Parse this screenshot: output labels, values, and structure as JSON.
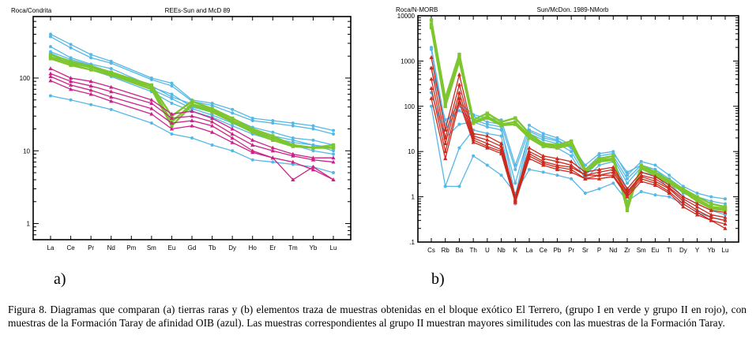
{
  "chart_data": [
    {
      "type": "line",
      "id": "a",
      "ylabel": "Roca/Condrita",
      "title": "REEs-Sun and McD 89",
      "yscale": "log",
      "ylim": [
        0.6,
        700
      ],
      "ytick_labels": [
        {
          "v": 100,
          "t": "100"
        },
        {
          "v": 10,
          "t": "10"
        },
        {
          "v": 1,
          "t": "1"
        }
      ],
      "categories": [
        "La",
        "Ce",
        "Pr",
        "Nd",
        "Pm",
        "Sm",
        "Eu",
        "Gd",
        "Tb",
        "Dy",
        "Ho",
        "Er",
        "Tm",
        "Yb",
        "Lu"
      ],
      "series": [
        {
          "name": "Taray OIB",
          "group": "blue",
          "values": [
            400,
            290,
            210,
            170,
            null,
            100,
            85,
            50,
            45,
            37,
            28,
            26,
            24,
            22,
            19
          ]
        },
        {
          "name": "Taray OIB",
          "group": "blue",
          "values": [
            370,
            260,
            190,
            160,
            null,
            95,
            78,
            48,
            42,
            33,
            26,
            24,
            22,
            20,
            17
          ]
        },
        {
          "name": "Taray OIB",
          "group": "blue",
          "values": [
            270,
            190,
            155,
            135,
            null,
            78,
            55,
            44,
            38,
            28,
            21,
            18,
            15,
            14,
            12
          ]
        },
        {
          "name": "Taray OIB",
          "group": "blue",
          "values": [
            230,
            180,
            150,
            120,
            null,
            75,
            60,
            40,
            34,
            26,
            20,
            16,
            14,
            12,
            11
          ]
        },
        {
          "name": "Taray OIB",
          "group": "blue",
          "values": [
            220,
            165,
            140,
            115,
            null,
            70,
            52,
            38,
            31,
            24,
            18,
            15,
            13,
            12,
            10
          ]
        },
        {
          "name": "Taray OIB",
          "group": "blue",
          "values": [
            210,
            155,
            130,
            105,
            null,
            65,
            45,
            35,
            29,
            22,
            17,
            14,
            12,
            10,
            9
          ]
        },
        {
          "name": "Taray OIB",
          "group": "blue",
          "values": [
            57,
            50,
            43,
            37,
            null,
            24,
            17,
            15,
            12,
            10,
            7.5,
            7,
            6.5,
            6,
            5
          ]
        },
        {
          "name": "Grupo I",
          "group": "green",
          "values": [
            210,
            170,
            145,
            120,
            null,
            80,
            30,
            48,
            38,
            28,
            20,
            16,
            12,
            11,
            11
          ]
        },
        {
          "name": "Grupo I",
          "group": "green",
          "values": [
            195,
            160,
            140,
            115,
            null,
            75,
            25,
            44,
            36,
            26,
            19,
            15,
            12,
            11,
            12
          ]
        },
        {
          "name": "Grupo I",
          "group": "green",
          "values": [
            185,
            150,
            130,
            110,
            null,
            70,
            22,
            42,
            34,
            25,
            18,
            14,
            11.5,
            11,
            11
          ]
        },
        {
          "name": "Grupo II",
          "group": "pink",
          "values": [
            135,
            100,
            90,
            75,
            null,
            50,
            32,
            35,
            28,
            20,
            14,
            11,
            9,
            8,
            8
          ]
        },
        {
          "name": "Grupo II",
          "group": "pink",
          "values": [
            115,
            90,
            78,
            65,
            null,
            45,
            28,
            30,
            25,
            17,
            12,
            10,
            8.5,
            7.5,
            7
          ]
        },
        {
          "name": "Grupo II",
          "group": "pink",
          "values": [
            105,
            80,
            68,
            55,
            null,
            38,
            24,
            26,
            22,
            15,
            10,
            8,
            4,
            6,
            4
          ]
        },
        {
          "name": "Grupo II",
          "group": "pink",
          "values": [
            92,
            70,
            60,
            48,
            null,
            32,
            20,
            22,
            18,
            13,
            9.5,
            8,
            7,
            5.5,
            4
          ]
        }
      ]
    },
    {
      "type": "line",
      "id": "b",
      "ylabel": "Roca/N-MORB",
      "title": "Sun/McDon. 1989-NMorb",
      "yscale": "log",
      "ylim": [
        0.1,
        10000
      ],
      "ytick_labels": [
        {
          "v": 10000,
          "t": "10000"
        },
        {
          "v": 1000,
          "t": "1000"
        },
        {
          "v": 100,
          "t": "100"
        },
        {
          "v": 10,
          "t": "10"
        },
        {
          "v": 1,
          "t": "1"
        },
        {
          "v": 0.1,
          "t": ".1"
        }
      ],
      "categories": [
        "Cs",
        "Rb",
        "Ba",
        "Th",
        "U",
        "Nb",
        "K",
        "La",
        "Ce",
        "Pb",
        "Pr",
        "Sr",
        "P",
        "Nd",
        "Zr",
        "Sm",
        "Eu",
        "Ti",
        "Dy",
        "Y",
        "Yb",
        "Lu"
      ],
      "series": [
        {
          "name": "Taray OIB",
          "group": "blue",
          "values": [
            2000,
            40,
            120,
            65,
            55,
            50,
            5,
            38,
            25,
            20,
            14,
            5,
            9,
            10,
            3,
            6,
            5,
            3,
            1.7,
            1.2,
            1,
            0.9
          ]
        },
        {
          "name": "Taray OIB",
          "group": "blue",
          "values": [
            1800,
            30,
            100,
            60,
            45,
            40,
            4,
            30,
            22,
            18,
            12,
            4,
            8,
            9,
            3.5,
            5,
            4,
            2.5,
            1.5,
            1,
            0.8,
            0.7
          ]
        },
        {
          "name": "Taray OIB",
          "group": "blue",
          "values": [
            700,
            50,
            80,
            50,
            40,
            35,
            1,
            28,
            20,
            17,
            12,
            3.5,
            7,
            8,
            2.5,
            5,
            4,
            2.2,
            1.2,
            0.9,
            0.6,
            0.5
          ]
        },
        {
          "name": "Taray OIB",
          "group": "blue",
          "values": [
            200,
            20,
            40,
            45,
            35,
            30,
            2,
            25,
            18,
            15,
            10,
            3,
            6,
            7,
            2,
            4.5,
            3.5,
            2,
            1,
            0.7,
            0.5,
            0.4
          ]
        },
        {
          "name": "Taray OIB",
          "group": "blue",
          "values": [
            100,
            1.7,
            12,
            30,
            25,
            22,
            0.7,
            20,
            15,
            12,
            8,
            2.5,
            5,
            6,
            1.5,
            3.5,
            3,
            1.5,
            0.8,
            0.5,
            0.35,
            0.3
          ]
        },
        {
          "name": "Taray OIB",
          "group": "blue",
          "values": [
            null,
            1.7,
            1.7,
            8,
            5,
            3,
            1.2,
            4,
            3.5,
            3,
            2.5,
            1.2,
            1.5,
            2,
            0.8,
            1.3,
            1.1,
            1,
            0.7,
            0.45,
            0.35,
            0.3
          ]
        },
        {
          "name": "Grupo I",
          "group": "green",
          "values": [
            8000,
            150,
            1400,
            50,
            70,
            45,
            55,
            25,
            15,
            14,
            17,
            4,
            7,
            8,
            0.5,
            5,
            3.5,
            2.3,
            1.5,
            1,
            0.7,
            0.6
          ]
        },
        {
          "name": "Grupo I",
          "group": "green",
          "values": [
            6500,
            120,
            1200,
            45,
            60,
            40,
            45,
            22,
            14,
            13,
            15,
            3.5,
            6.5,
            7,
            0.6,
            4.5,
            3.2,
            2.1,
            1.4,
            0.9,
            0.6,
            0.55
          ]
        },
        {
          "name": "Grupo I",
          "group": "green",
          "values": [
            5500,
            100,
            1000,
            42,
            55,
            38,
            40,
            20,
            13,
            12,
            14,
            3.5,
            6,
            6.5,
            0.7,
            4.2,
            3,
            2,
            1.3,
            0.8,
            0.55,
            0.5
          ]
        },
        {
          "name": "Grupo II",
          "group": "red",
          "values": [
            1200,
            30,
            500,
            25,
            22,
            15,
            1,
            12,
            8,
            7,
            6,
            3.5,
            4,
            4.5,
            1.5,
            3.5,
            2.8,
            1.8,
            1,
            0.7,
            0.5,
            0.45
          ]
        },
        {
          "name": "Grupo II",
          "group": "red",
          "values": [
            700,
            20,
            300,
            22,
            18,
            13,
            0.9,
            10,
            7,
            6,
            5,
            3,
            3.5,
            4,
            1.3,
            3,
            2.5,
            1.6,
            0.9,
            0.6,
            0.4,
            0.35
          ]
        },
        {
          "name": "Grupo II",
          "group": "red",
          "values": [
            400,
            15,
            200,
            20,
            15,
            11,
            0.85,
            9,
            6,
            5,
            4.5,
            3,
            3,
            3.5,
            1.2,
            2.8,
            2.2,
            1.5,
            0.8,
            0.5,
            0.35,
            0.3
          ]
        },
        {
          "name": "Grupo II",
          "group": "red",
          "values": [
            250,
            10,
            150,
            18,
            13,
            10,
            0.8,
            8,
            5.5,
            4.5,
            4,
            2.5,
            3,
            3,
            1.1,
            2.5,
            2,
            1.3,
            0.7,
            0.45,
            0.3,
            0.25
          ]
        },
        {
          "name": "Grupo II",
          "group": "red",
          "values": [
            150,
            7,
            120,
            16,
            12,
            9,
            0.75,
            7,
            5,
            4,
            3.5,
            2.5,
            2.5,
            2.8,
            1,
            2.2,
            1.8,
            1.2,
            0.6,
            0.4,
            0.3,
            0.2
          ]
        }
      ]
    }
  ],
  "colors": {
    "blue": "#55b8e6",
    "green": "#7ec630",
    "pink": "#cc2288",
    "red": "#cc2a1e"
  },
  "labels": {
    "a": "a)",
    "b": "b)"
  },
  "caption": "Figura 8. Diagramas que comparan (a) tierras raras y (b) elementos traza de muestras obtenidas en el bloque exótico El Terrero, (grupo I en verde y grupo II en rojo), con muestras de la Formación Taray de afinidad OIB (azul). Las muestras correspondientes al grupo II muestran mayores similitudes con las muestras de la Formación Taray."
}
